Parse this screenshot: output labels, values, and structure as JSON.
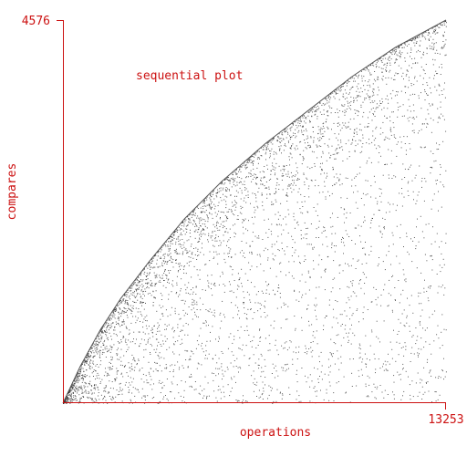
{
  "chart_data": {
    "type": "scatter",
    "title": "sequential plot",
    "xlabel": "operations",
    "ylabel": "compares",
    "xlim": [
      0,
      13253
    ],
    "ylim": [
      0,
      4576
    ],
    "x_tick_labels": [
      "13253"
    ],
    "y_tick_labels": [
      "4576"
    ],
    "grid": false,
    "legend": "none",
    "envelope": [
      {
        "x": 0,
        "y": 0
      },
      {
        "x": 600,
        "y": 440
      },
      {
        "x": 1300,
        "y": 880
      },
      {
        "x": 2000,
        "y": 1250
      },
      {
        "x": 3000,
        "y": 1700
      },
      {
        "x": 4200,
        "y": 2200
      },
      {
        "x": 5500,
        "y": 2650
      },
      {
        "x": 7000,
        "y": 3100
      },
      {
        "x": 8500,
        "y": 3500
      },
      {
        "x": 10000,
        "y": 3900
      },
      {
        "x": 11500,
        "y": 4250
      },
      {
        "x": 13253,
        "y": 4576
      }
    ],
    "point_count": 13253,
    "colors": {
      "axis": "#cc1111",
      "text": "#cc1111",
      "points": "#222222",
      "envelope": "#555555"
    }
  }
}
